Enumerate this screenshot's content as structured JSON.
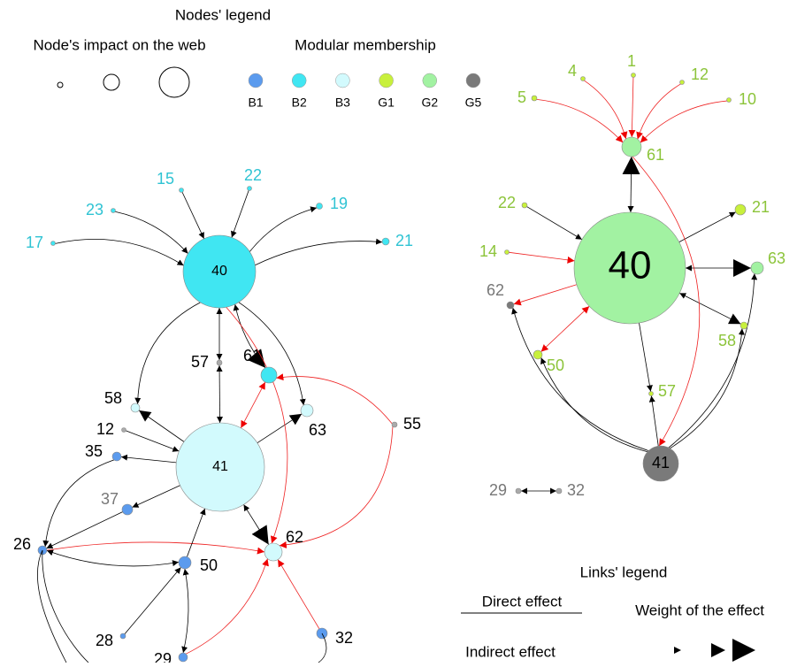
{
  "nodes_legend": {
    "title": "Nodes' legend",
    "impact_label": "Node's impact on the web",
    "modular_label": "Modular membership",
    "modules": [
      "B1",
      "B2",
      "B3",
      "G1",
      "G2",
      "G5"
    ]
  },
  "links_legend": {
    "title": "Links' legend",
    "direct": "Direct effect",
    "indirect": "Indirect effect",
    "weight": "Weight of the effect"
  },
  "left_graph": {
    "nodes": [
      "40",
      "41",
      "15",
      "22",
      "23",
      "19",
      "17",
      "21",
      "57",
      "61",
      "58",
      "12",
      "63",
      "55",
      "35",
      "37",
      "26",
      "50",
      "62",
      "28",
      "29",
      "32"
    ]
  },
  "right_graph": {
    "nodes": [
      "40",
      "41",
      "61",
      "5",
      "4",
      "1",
      "12",
      "10",
      "22",
      "21",
      "14",
      "63",
      "62",
      "58",
      "50",
      "57",
      "29",
      "32"
    ]
  }
}
